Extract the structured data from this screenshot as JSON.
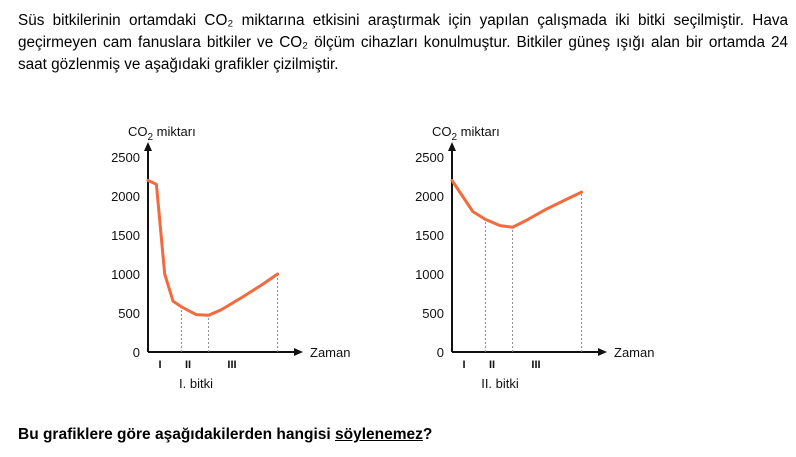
{
  "paragraph": "Süs bitkilerinin ortamdaki CO₂ miktarına etkisini araştırmak için yapılan çalışmada iki bitki seçilmiştir. Hava geçirmeyen cam fanuslara bitkiler ve CO₂ ölçüm cihazları konulmuştur. Bitkiler güneş ışığı alan bir ortamda 24 saat gözlenmiş ve aşağıdaki grafikler çizilmiştir.",
  "question": {
    "prefix": "Bu grafiklere göre aşağıdakilerden hangisi ",
    "underlined": "söylenemez",
    "suffix": "?"
  },
  "chart_data": [
    {
      "type": "line",
      "title": "I. bitki",
      "ylabel": "CO2 miktarı",
      "xlabel": "Zaman",
      "yticks": [
        0,
        500,
        1000,
        1500,
        2000,
        2500
      ],
      "ylim": [
        0,
        2500
      ],
      "xlim": [
        0,
        10
      ],
      "xticks": [
        1,
        2,
        3
      ],
      "xtick_labels": [
        "I",
        "II",
        "III"
      ],
      "dashed_x": [
        1.6,
        2.9,
        6.2
      ],
      "line_color": "#f26a3d",
      "x": [
        0,
        0.4,
        0.8,
        1.2,
        1.6,
        2.3,
        2.9,
        3.5,
        4.5,
        5.5,
        6.2
      ],
      "y": [
        2200,
        2150,
        1000,
        650,
        580,
        480,
        470,
        540,
        700,
        870,
        1000
      ]
    },
    {
      "type": "line",
      "title": "II. bitki",
      "ylabel": "CO2 miktarı",
      "xlabel": "Zaman",
      "yticks": [
        0,
        500,
        1000,
        1500,
        2000,
        2500
      ],
      "ylim": [
        0,
        2500
      ],
      "xlim": [
        0,
        10
      ],
      "xticks": [
        1,
        2,
        3
      ],
      "xtick_labels": [
        "I",
        "II",
        "III"
      ],
      "dashed_x": [
        1.6,
        2.9,
        6.2
      ],
      "line_color": "#f26a3d",
      "x": [
        0,
        0.5,
        1.0,
        1.6,
        2.3,
        2.9,
        3.5,
        4.5,
        5.5,
        6.2
      ],
      "y": [
        2200,
        2000,
        1800,
        1700,
        1620,
        1600,
        1680,
        1830,
        1960,
        2050
      ]
    }
  ]
}
